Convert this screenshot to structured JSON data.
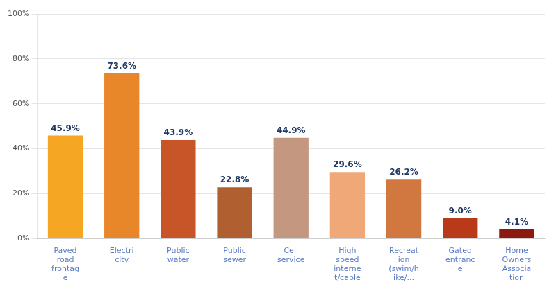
{
  "chart_data": {
    "type": "bar",
    "categories": [
      "Paved\nroad\nfrontag\ne",
      "Electri\ncity",
      "Public\nwater",
      "Public\nsewer",
      "Cell\nservice",
      "High\nspeed\ninterne\nt/cable",
      "Recreat\nion\n(swim/h\nike/...",
      "Gated\nentranc\ne",
      "Home\nOwners\nAssocia\ntion"
    ],
    "values": [
      45.9,
      73.6,
      43.9,
      22.8,
      44.9,
      29.6,
      26.2,
      9.0,
      4.1
    ],
    "value_labels": [
      "45.9%",
      "73.6%",
      "43.9%",
      "22.8%",
      "44.9%",
      "29.6%",
      "26.2%",
      "9.0%",
      "4.1%"
    ],
    "colors": [
      "#F5A623",
      "#E8872A",
      "#C85528",
      "#B06030",
      "#C49880",
      "#F0A878",
      "#D07840",
      "#B83A18",
      "#8B1A10"
    ],
    "ylim": [
      0,
      100
    ],
    "yticks": [
      {
        "value": 0,
        "label": "0%"
      },
      {
        "value": 20,
        "label": "20%"
      },
      {
        "value": 40,
        "label": "40%"
      },
      {
        "value": 60,
        "label": "60%"
      },
      {
        "value": 80,
        "label": "80%"
      },
      {
        "value": 100,
        "label": "100%"
      }
    ],
    "grid": true,
    "data_labels": true
  }
}
